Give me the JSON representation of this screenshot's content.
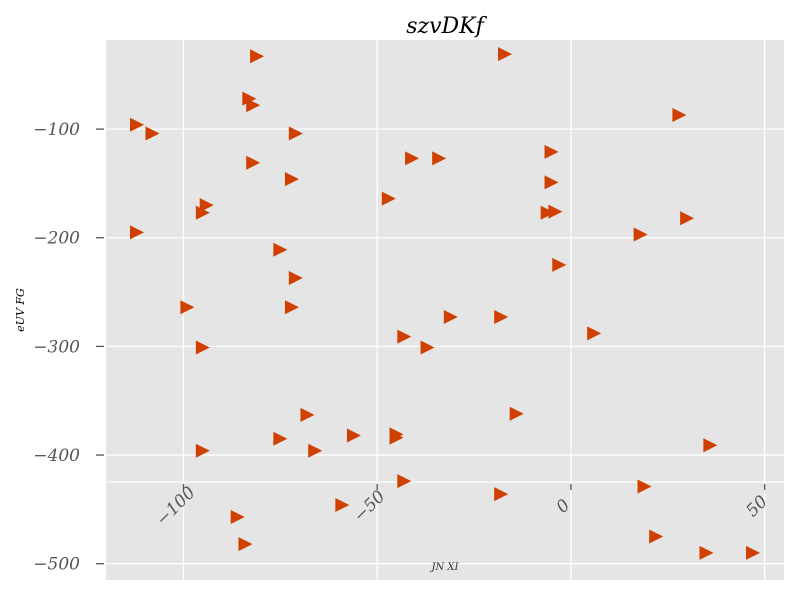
{
  "chart_data": {
    "type": "scatter",
    "title": "szvDKf",
    "xlabel": "JN XI",
    "ylabel": "eUV FG",
    "xlim": [
      -120,
      55
    ],
    "ylim": [
      -515,
      -18
    ],
    "xticks": [
      -100,
      -50,
      0,
      50
    ],
    "yticks": [
      -100,
      -200,
      -300,
      -400,
      -500
    ],
    "grid": true,
    "marker": "triangle-right",
    "color": "#d04000",
    "background": "#e5e5e5",
    "points": [
      {
        "x": -81,
        "y": -33
      },
      {
        "x": -17,
        "y": -31
      },
      {
        "x": -83,
        "y": -72
      },
      {
        "x": -82,
        "y": -78
      },
      {
        "x": 28,
        "y": -87
      },
      {
        "x": -112,
        "y": -96
      },
      {
        "x": -108,
        "y": -104
      },
      {
        "x": -71,
        "y": -104
      },
      {
        "x": -5,
        "y": -121
      },
      {
        "x": -82,
        "y": -131
      },
      {
        "x": -41,
        "y": -127
      },
      {
        "x": -34,
        "y": -127
      },
      {
        "x": -72,
        "y": -146
      },
      {
        "x": -5,
        "y": -149
      },
      {
        "x": -47,
        "y": -164
      },
      {
        "x": -94,
        "y": -170
      },
      {
        "x": -95,
        "y": -177
      },
      {
        "x": -6,
        "y": -177
      },
      {
        "x": -4,
        "y": -176
      },
      {
        "x": -112,
        "y": -195
      },
      {
        "x": 18,
        "y": -197
      },
      {
        "x": 30,
        "y": -182
      },
      {
        "x": -75,
        "y": -211
      },
      {
        "x": -3,
        "y": -225
      },
      {
        "x": -71,
        "y": -237
      },
      {
        "x": -99,
        "y": -264
      },
      {
        "x": -72,
        "y": -264
      },
      {
        "x": -31,
        "y": -273
      },
      {
        "x": -18,
        "y": -273
      },
      {
        "x": 6,
        "y": -288
      },
      {
        "x": -43,
        "y": -291
      },
      {
        "x": -37,
        "y": -301
      },
      {
        "x": -95,
        "y": -301
      },
      {
        "x": -68,
        "y": -363
      },
      {
        "x": -14,
        "y": -362
      },
      {
        "x": -75,
        "y": -385
      },
      {
        "x": -56,
        "y": -382
      },
      {
        "x": -45,
        "y": -381
      },
      {
        "x": -45,
        "y": -384
      },
      {
        "x": -66,
        "y": -396
      },
      {
        "x": -95,
        "y": -396
      },
      {
        "x": 36,
        "y": -391
      },
      {
        "x": -43,
        "y": -424
      },
      {
        "x": -18,
        "y": -436
      },
      {
        "x": 19,
        "y": -429
      },
      {
        "x": -59,
        "y": -446
      },
      {
        "x": -86,
        "y": -457
      },
      {
        "x": -84,
        "y": -482
      },
      {
        "x": 22,
        "y": -475
      },
      {
        "x": 35,
        "y": -490
      },
      {
        "x": 47,
        "y": -490
      }
    ]
  }
}
